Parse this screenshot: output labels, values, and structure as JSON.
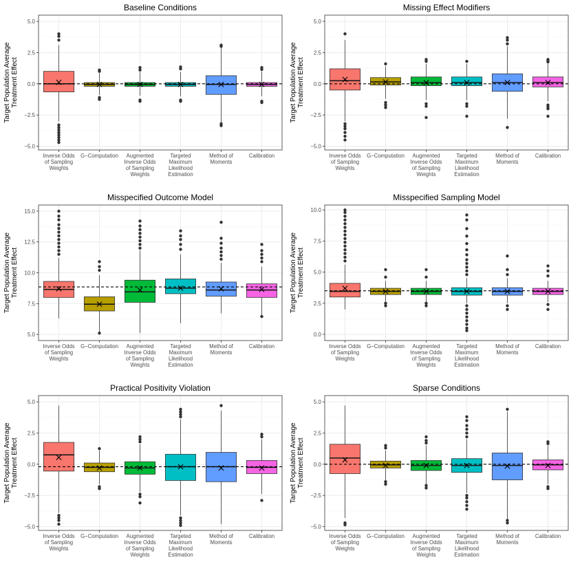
{
  "colors": {
    "methods": [
      "#F8766D",
      "#B79F00",
      "#00BA38",
      "#00BFC4",
      "#619CFF",
      "#F564E3"
    ],
    "grid": "#ebebeb",
    "panel_border": "#333333",
    "text": "#4d4d4d"
  },
  "y_axis_title": [
    "Target Population Average",
    "Treatment Effect"
  ],
  "method_labels": [
    [
      "Inverse Odds",
      "of Sampling",
      "Weights"
    ],
    [
      "G−Computation"
    ],
    [
      "Augmented",
      "Inverse Odds",
      "of Sampling",
      "Weights"
    ],
    [
      "Targeted",
      "Maximum",
      "Likelihood",
      "Estimation"
    ],
    [
      "Method of",
      "Moments"
    ],
    [
      "Calibration"
    ]
  ],
  "chart_data": [
    {
      "type": "box",
      "title": "Baseline Conditions",
      "ylim": [
        -5.3,
        5.5
      ],
      "yticks": [
        -5.0,
        -2.5,
        0.0,
        2.5,
        5.0
      ],
      "ytick_labels": [
        "−5.0",
        "−2.5",
        "0.0",
        "2.5",
        "5.0"
      ],
      "reference": 0.0,
      "boxes": [
        {
          "q1": -0.65,
          "median": 0.0,
          "q3": 1.0,
          "low": -3.0,
          "high": 3.1,
          "mean": 0.12,
          "outliers": [
            3.5,
            3.8,
            4.0,
            -3.3,
            -3.5,
            -3.7,
            -3.9,
            -4.1,
            -4.3,
            -4.5,
            -4.7
          ]
        },
        {
          "q1": -0.2,
          "median": -0.05,
          "q3": 0.1,
          "low": -0.9,
          "high": 0.85,
          "mean": -0.05,
          "outliers": [
            1.0,
            1.1,
            -1.1,
            -1.25
          ]
        },
        {
          "q1": -0.2,
          "median": -0.05,
          "q3": 0.1,
          "low": -0.95,
          "high": 0.95,
          "mean": -0.05,
          "outliers": [
            1.1,
            1.3,
            -1.3,
            -1.4
          ]
        },
        {
          "q1": -0.2,
          "median": -0.05,
          "q3": 0.1,
          "low": -1.0,
          "high": 0.95,
          "mean": -0.05,
          "outliers": [
            1.2,
            1.35,
            -1.3,
            -1.4
          ]
        },
        {
          "q1": -0.85,
          "median": -0.05,
          "q3": 0.65,
          "low": -3.1,
          "high": 2.9,
          "mean": -0.05,
          "outliers": [
            3.0,
            3.1,
            -3.2,
            -3.35
          ]
        },
        {
          "q1": -0.2,
          "median": -0.05,
          "q3": 0.1,
          "low": -1.0,
          "high": 1.0,
          "mean": -0.05,
          "outliers": [
            1.15,
            1.3,
            -1.4,
            -1.5
          ]
        }
      ]
    },
    {
      "type": "box",
      "title": "Missing Effect Modifiers",
      "ylim": [
        -5.3,
        5.5
      ],
      "yticks": [
        -5.0,
        -2.5,
        0.0,
        2.5,
        5.0
      ],
      "ytick_labels": [
        "−5.0",
        "−2.5",
        "0.0",
        "2.5",
        "5.0"
      ],
      "reference": 0.0,
      "boxes": [
        {
          "q1": -0.5,
          "median": 0.25,
          "q3": 1.2,
          "low": -3.0,
          "high": 3.5,
          "mean": 0.35,
          "outliers": [
            4.0,
            -3.2,
            -3.4,
            -3.6,
            -3.9,
            -4.2,
            -4.5
          ]
        },
        {
          "q1": -0.1,
          "median": 0.15,
          "q3": 0.5,
          "low": -1.2,
          "high": 1.4,
          "mean": 0.15,
          "outliers": [
            1.6,
            -1.5,
            -1.7,
            -1.9
          ]
        },
        {
          "q1": -0.15,
          "median": 0.1,
          "q3": 0.55,
          "low": -1.3,
          "high": 1.6,
          "mean": 0.1,
          "outliers": [
            1.8,
            1.95,
            -1.6,
            -1.8,
            -2.7
          ]
        },
        {
          "q1": -0.15,
          "median": 0.1,
          "q3": 0.55,
          "low": -1.3,
          "high": 1.6,
          "mean": 0.1,
          "outliers": [
            1.8,
            -1.6,
            -1.8,
            -2.6
          ]
        },
        {
          "q1": -0.6,
          "median": 0.1,
          "q3": 0.8,
          "low": -2.8,
          "high": 3.0,
          "mean": 0.1,
          "outliers": [
            3.2,
            3.5,
            3.7,
            -3.5
          ]
        },
        {
          "q1": -0.25,
          "median": 0.1,
          "q3": 0.55,
          "low": -1.4,
          "high": 1.6,
          "mean": 0.1,
          "outliers": [
            1.75,
            1.85,
            1.95,
            -1.7,
            -1.85,
            -2.0,
            -2.6
          ]
        }
      ]
    },
    {
      "type": "box",
      "title": "Misspecified Outcome Model",
      "ylim": [
        4.5,
        15.5
      ],
      "yticks": [
        5.0,
        7.5,
        10.0,
        12.5,
        15.0
      ],
      "ytick_labels": [
        "5.0",
        "7.5",
        "10.0",
        "12.5",
        "15.0"
      ],
      "reference": 8.85,
      "boxes": [
        {
          "q1": 8.0,
          "median": 8.65,
          "q3": 9.3,
          "low": 6.3,
          "high": 11.2,
          "mean": 8.7,
          "outliers": [
            11.5,
            11.8,
            12.1,
            12.4,
            12.7,
            13.0,
            13.3,
            13.6,
            13.9,
            14.3,
            14.6,
            15.0
          ]
        },
        {
          "q1": 6.9,
          "median": 7.45,
          "q3": 8.05,
          "low": 5.2,
          "high": 9.8,
          "mean": 7.45,
          "outliers": [
            10.2,
            10.5,
            10.9,
            5.1
          ]
        },
        {
          "q1": 7.6,
          "median": 8.45,
          "q3": 9.4,
          "low": 5.1,
          "high": 11.8,
          "mean": 8.6,
          "outliers": [
            12.0,
            12.3,
            12.6,
            12.9,
            13.2,
            13.5,
            13.8,
            14.2
          ]
        },
        {
          "q1": 8.3,
          "median": 8.75,
          "q3": 9.5,
          "low": 5.9,
          "high": 11.5,
          "mean": 8.75,
          "outliers": [
            11.9,
            12.3,
            12.7,
            13.0,
            13.4
          ]
        },
        {
          "q1": 8.1,
          "median": 8.6,
          "q3": 9.25,
          "low": 6.7,
          "high": 10.8,
          "mean": 8.7,
          "outliers": [
            11.1,
            11.4,
            11.7,
            12.0,
            12.4,
            12.8,
            14.1
          ]
        },
        {
          "q1": 8.0,
          "median": 8.6,
          "q3": 9.1,
          "low": 6.5,
          "high": 10.5,
          "mean": 8.65,
          "outliers": [
            10.9,
            11.2,
            11.5,
            11.8,
            12.3,
            6.45
          ]
        }
      ]
    },
    {
      "type": "box",
      "title": "Misspecified Sampling Model",
      "ylim": [
        -0.5,
        10.4
      ],
      "yticks": [
        0.0,
        2.5,
        5.0,
        7.5,
        10.0
      ],
      "ytick_labels": [
        "0.0",
        "2.5",
        "5.0",
        "7.5",
        "10.0"
      ],
      "reference": 3.5,
      "boxes": [
        {
          "q1": 3.0,
          "median": 3.45,
          "q3": 4.1,
          "low": 2.0,
          "high": 5.6,
          "mean": 3.7,
          "outliers": [
            5.9,
            6.2,
            6.5,
            6.8,
            7.1,
            7.4,
            7.7,
            8.0,
            8.3,
            8.6,
            8.9,
            9.2,
            9.5,
            9.8,
            10.0
          ]
        },
        {
          "q1": 3.2,
          "median": 3.45,
          "q3": 3.7,
          "low": 2.6,
          "high": 4.3,
          "mean": 3.45,
          "outliers": [
            4.6,
            5.2,
            2.5,
            2.3
          ]
        },
        {
          "q1": 3.2,
          "median": 3.45,
          "q3": 3.7,
          "low": 2.6,
          "high": 4.3,
          "mean": 3.45,
          "outliers": [
            4.6,
            5.2,
            2.5,
            2.3
          ]
        },
        {
          "q1": 3.15,
          "median": 3.45,
          "q3": 3.75,
          "low": 2.5,
          "high": 4.5,
          "mean": 3.45,
          "outliers": [
            4.8,
            5.1,
            5.4,
            5.7,
            6.0,
            6.4,
            6.8,
            7.3,
            7.9,
            8.5,
            9.2,
            9.6,
            2.3,
            2.0,
            1.7,
            1.4,
            1.1,
            0.8,
            0.5,
            0.3
          ]
        },
        {
          "q1": 3.15,
          "median": 3.45,
          "q3": 3.75,
          "low": 2.5,
          "high": 4.5,
          "mean": 3.45,
          "outliers": [
            4.8,
            5.2,
            6.3,
            2.3,
            2.0
          ]
        },
        {
          "q1": 3.2,
          "median": 3.45,
          "q3": 3.7,
          "low": 2.6,
          "high": 4.3,
          "mean": 3.45,
          "outliers": [
            4.7,
            5.1,
            5.5,
            2.4,
            2.0
          ]
        }
      ]
    },
    {
      "type": "box",
      "title": "Practical Positivity Violation",
      "ylim": [
        -5.3,
        5.5
      ],
      "yticks": [
        -5.0,
        -2.5,
        0.0,
        2.5,
        5.0
      ],
      "ytick_labels": [
        "−5.0",
        "−2.5",
        "0.0",
        "2.5",
        "5.0"
      ],
      "reference": -0.2,
      "boxes": [
        {
          "q1": -0.55,
          "median": 0.75,
          "q3": 1.75,
          "low": -3.9,
          "high": 4.7,
          "mean": 0.55,
          "outliers": [
            -4.1,
            -4.3,
            -4.5,
            -4.8
          ]
        },
        {
          "q1": -0.6,
          "median": -0.25,
          "q3": 0.1,
          "low": -1.6,
          "high": 1.1,
          "mean": -0.3,
          "outliers": [
            1.25,
            -1.8,
            -1.95
          ]
        },
        {
          "q1": -0.8,
          "median": -0.3,
          "q3": 0.2,
          "low": -2.2,
          "high": 1.6,
          "mean": -0.3,
          "outliers": [
            1.8,
            2.0,
            2.2,
            -2.4,
            -2.6,
            -3.1
          ]
        },
        {
          "q1": -1.3,
          "median": -0.2,
          "q3": 0.8,
          "low": -4.1,
          "high": 3.6,
          "mean": -0.2,
          "outliers": [
            3.8,
            4.0,
            4.2,
            4.4,
            -4.3,
            -4.5,
            -4.7,
            -4.9
          ]
        },
        {
          "q1": -1.4,
          "median": -0.2,
          "q3": 0.95,
          "low": -4.8,
          "high": 4.3,
          "mean": -0.3,
          "outliers": [
            4.7
          ]
        },
        {
          "q1": -0.75,
          "median": -0.25,
          "q3": 0.3,
          "low": -2.4,
          "high": 2.0,
          "mean": -0.3,
          "outliers": [
            2.2,
            2.4,
            -2.9
          ]
        }
      ]
    },
    {
      "type": "box",
      "title": "Sparse Conditions",
      "ylim": [
        -5.3,
        5.5
      ],
      "yticks": [
        -5.0,
        -2.5,
        0.0,
        2.5,
        5.0
      ],
      "ytick_labels": [
        "−5.0",
        "−2.5",
        "0.0",
        "2.5",
        "5.0"
      ],
      "reference": 0.0,
      "boxes": [
        {
          "q1": -0.75,
          "median": 0.5,
          "q3": 1.6,
          "low": -4.3,
          "high": 4.7,
          "mean": 0.35,
          "outliers": [
            -4.7,
            -4.85
          ]
        },
        {
          "q1": -0.3,
          "median": -0.05,
          "q3": 0.25,
          "low": -1.3,
          "high": 1.1,
          "mean": -0.1,
          "outliers": [
            1.3,
            1.5,
            -1.4,
            -1.6
          ]
        },
        {
          "q1": -0.5,
          "median": -0.1,
          "q3": 0.3,
          "low": -1.6,
          "high": 1.5,
          "mean": -0.1,
          "outliers": [
            1.7,
            1.9,
            2.2,
            -1.7,
            -1.9
          ]
        },
        {
          "q1": -0.65,
          "median": -0.1,
          "q3": 0.45,
          "low": -2.3,
          "high": 2.0,
          "mean": -0.1,
          "outliers": [
            2.2,
            2.5,
            2.8,
            3.1,
            3.5,
            3.8,
            -2.5,
            -2.7,
            -3.0,
            -3.3,
            -3.6
          ]
        },
        {
          "q1": -1.25,
          "median": -0.1,
          "q3": 0.9,
          "low": -4.4,
          "high": 4.2,
          "mean": -0.15,
          "outliers": [
            4.4,
            -4.5,
            -4.7
          ]
        },
        {
          "q1": -0.45,
          "median": -0.05,
          "q3": 0.35,
          "low": -1.6,
          "high": 1.5,
          "mean": -0.1,
          "outliers": [
            1.65,
            1.8,
            -1.8,
            -1.95
          ]
        }
      ]
    }
  ]
}
